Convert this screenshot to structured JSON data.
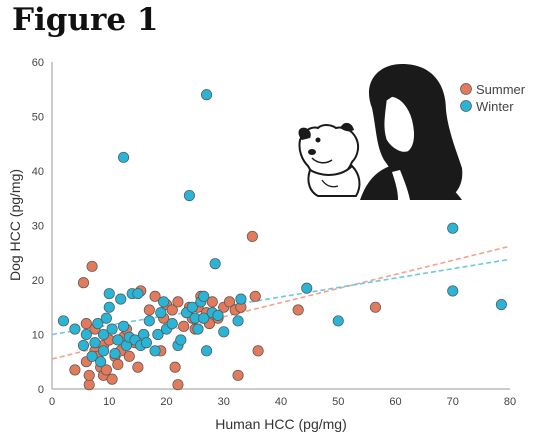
{
  "figure_label": "Figure 1",
  "colors": {
    "Summer": "#e27a5c",
    "Winter": "#2ab4d6",
    "Summer_trend": "#f2a38e",
    "Winter_trend": "#6cc8e3",
    "axis": "#999999"
  },
  "illustration": "woman-and-dog-illustration",
  "chart_data": {
    "type": "scatter",
    "title": "",
    "xlabel": "Human HCC (pg/mg)",
    "ylabel": "Dog HCC (pg/mg)",
    "xlim": [
      0,
      80
    ],
    "ylim": [
      0,
      60
    ],
    "xticks": [
      "0",
      "10",
      "20",
      "30",
      "40",
      "50",
      "60",
      "70",
      "80"
    ],
    "yticks": [
      "0",
      "10",
      "20",
      "30",
      "40",
      "50",
      "60"
    ],
    "grid": false,
    "legend_position": "top-right",
    "series": [
      {
        "name": "Summer",
        "color": "#e27a5c",
        "points": [
          [
            4,
            3.5
          ],
          [
            5.5,
            19.5
          ],
          [
            6,
            12
          ],
          [
            6,
            5
          ],
          [
            6.5,
            0.8
          ],
          [
            6.5,
            2.5
          ],
          [
            7,
            22.5
          ],
          [
            7.5,
            7
          ],
          [
            7.5,
            11
          ],
          [
            8,
            6
          ],
          [
            8.5,
            4
          ],
          [
            9,
            2.5
          ],
          [
            9,
            8
          ],
          [
            9.5,
            3.5
          ],
          [
            10,
            9
          ],
          [
            10.5,
            1.8
          ],
          [
            11,
            6
          ],
          [
            11.5,
            4.5
          ],
          [
            12,
            7
          ],
          [
            12.5,
            9.5
          ],
          [
            13,
            11
          ],
          [
            13.5,
            6
          ],
          [
            14,
            9
          ],
          [
            14.5,
            8.5
          ],
          [
            15,
            4
          ],
          [
            15.5,
            18
          ],
          [
            16,
            10
          ],
          [
            17,
            14.5
          ],
          [
            18,
            17
          ],
          [
            18.5,
            10
          ],
          [
            19,
            7
          ],
          [
            19.5,
            13
          ],
          [
            20,
            15.5
          ],
          [
            21,
            14.5
          ],
          [
            21.5,
            4
          ],
          [
            22,
            16
          ],
          [
            22,
            0.8
          ],
          [
            23,
            11.5
          ],
          [
            24,
            15
          ],
          [
            24.5,
            13
          ],
          [
            25,
            11
          ],
          [
            25.5,
            15
          ],
          [
            26,
            17
          ],
          [
            26.5,
            13
          ],
          [
            27,
            14
          ],
          [
            27.5,
            12
          ],
          [
            28,
            16
          ],
          [
            29,
            13
          ],
          [
            30,
            15
          ],
          [
            31,
            16
          ],
          [
            32,
            14.5
          ],
          [
            32.5,
            2.5
          ],
          [
            33,
            15
          ],
          [
            35,
            28
          ],
          [
            35.5,
            17
          ],
          [
            36,
            7
          ],
          [
            43,
            14.5
          ],
          [
            56.5,
            15
          ]
        ]
      },
      {
        "name": "Winter",
        "color": "#2ab4d6",
        "points": [
          [
            2,
            12.5
          ],
          [
            4,
            11
          ],
          [
            5.5,
            8
          ],
          [
            6,
            10
          ],
          [
            7,
            6
          ],
          [
            7.5,
            8.5
          ],
          [
            8,
            12
          ],
          [
            8.5,
            5
          ],
          [
            9,
            10
          ],
          [
            9,
            7
          ],
          [
            9.5,
            13
          ],
          [
            10,
            17.5
          ],
          [
            10,
            15
          ],
          [
            10.5,
            11
          ],
          [
            11,
            6.5
          ],
          [
            11.5,
            9
          ],
          [
            12,
            16.5
          ],
          [
            12.5,
            11.5
          ],
          [
            12.5,
            42.5
          ],
          [
            13,
            8
          ],
          [
            13.5,
            9.5
          ],
          [
            14,
            17.5
          ],
          [
            14.5,
            9
          ],
          [
            15,
            17.5
          ],
          [
            15.5,
            8
          ],
          [
            16,
            10
          ],
          [
            16.5,
            8.5
          ],
          [
            17,
            12.5
          ],
          [
            18,
            7
          ],
          [
            18.5,
            10
          ],
          [
            19,
            14
          ],
          [
            19.5,
            16
          ],
          [
            20,
            11
          ],
          [
            21,
            12
          ],
          [
            22,
            8
          ],
          [
            22.5,
            9
          ],
          [
            23.5,
            14
          ],
          [
            24,
            35.5
          ],
          [
            24.5,
            15
          ],
          [
            25,
            13
          ],
          [
            25.5,
            11
          ],
          [
            26,
            16
          ],
          [
            26.5,
            13
          ],
          [
            26.5,
            17
          ],
          [
            27,
            54
          ],
          [
            27,
            7
          ],
          [
            28,
            14
          ],
          [
            28.5,
            23
          ],
          [
            29,
            13.5
          ],
          [
            30,
            10.5
          ],
          [
            32.5,
            12.5
          ],
          [
            33,
            16.5
          ],
          [
            44.5,
            18.5
          ],
          [
            50,
            12.5
          ],
          [
            70,
            29.5
          ],
          [
            70,
            18
          ],
          [
            78.5,
            15.5
          ]
        ]
      }
    ],
    "trendlines": [
      {
        "series": "Summer",
        "x": [
          0,
          80
        ],
        "y": [
          5.5,
          26.2
        ]
      },
      {
        "series": "Winter",
        "x": [
          0,
          80
        ],
        "y": [
          10.0,
          23.8
        ]
      }
    ]
  }
}
